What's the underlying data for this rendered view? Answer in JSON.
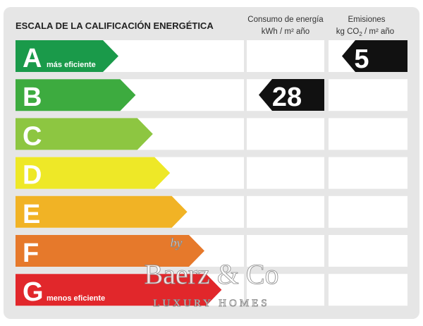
{
  "header": {
    "title": "ESCALA DE LA CALIFICACIÓN ENERGÉTICA"
  },
  "columns": {
    "consumption": {
      "label": "Consumo de energía",
      "unit": [
        "kWh / m² año"
      ],
      "value": "28"
    },
    "emissions": {
      "label": "Emisiones",
      "unit": [
        "kg CO",
        "2",
        " / m² año"
      ],
      "value": "5"
    }
  },
  "rows": [
    {
      "letter": "A",
      "note": "más eficiente",
      "color": "#1a9a4a"
    },
    {
      "letter": "B",
      "note": null,
      "color": "#3dab3f"
    },
    {
      "letter": "C",
      "note": null,
      "color": "#8dc641"
    },
    {
      "letter": "D",
      "note": null,
      "color": "#eee827"
    },
    {
      "letter": "E",
      "note": null,
      "color": "#f1b325"
    },
    {
      "letter": "F",
      "note": null,
      "color": "#e6792b"
    },
    {
      "letter": "G",
      "note": "menos eficiente",
      "color": "#e1272b"
    }
  ],
  "watermark": {
    "by": "by",
    "brand": "Baerz & Co",
    "tagline": "LUXURY HOMES"
  }
}
